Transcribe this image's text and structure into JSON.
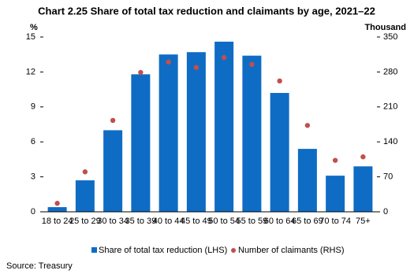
{
  "chart_data": {
    "type": "bar-dot",
    "title": "Chart 2.25 Share of total tax reduction and claimants by age, 2021–22",
    "ylabel": "%",
    "y2label": "Thousand",
    "categories": [
      "18 to 24",
      "25 to 29",
      "30 to 34",
      "35 to 39",
      "40 to 44",
      "45 to 49",
      "50 to 54",
      "55 to 59",
      "60 to 64",
      "65 to 69",
      "70 to 74",
      "75+"
    ],
    "series": [
      {
        "name": "Share of total tax reduction (LHS)",
        "color": "#0f6cc4",
        "values": [
          0.4,
          2.7,
          7.0,
          11.8,
          13.5,
          13.7,
          14.6,
          13.4,
          10.2,
          5.4,
          3.1,
          3.9
        ]
      },
      {
        "name": "Number of claimants (RHS)",
        "color": "#c0504d",
        "axis": "y2",
        "values": [
          17,
          80,
          183,
          279,
          300,
          289,
          309,
          295,
          262,
          173,
          103,
          110
        ]
      }
    ],
    "ylim": [
      0,
      15
    ],
    "yticks": [
      0,
      3,
      6,
      9,
      12,
      15
    ],
    "y2lim": [
      0,
      350
    ],
    "y2ticks": [
      0,
      70,
      140,
      210,
      280,
      350
    ],
    "source": "Source: Treasury"
  }
}
